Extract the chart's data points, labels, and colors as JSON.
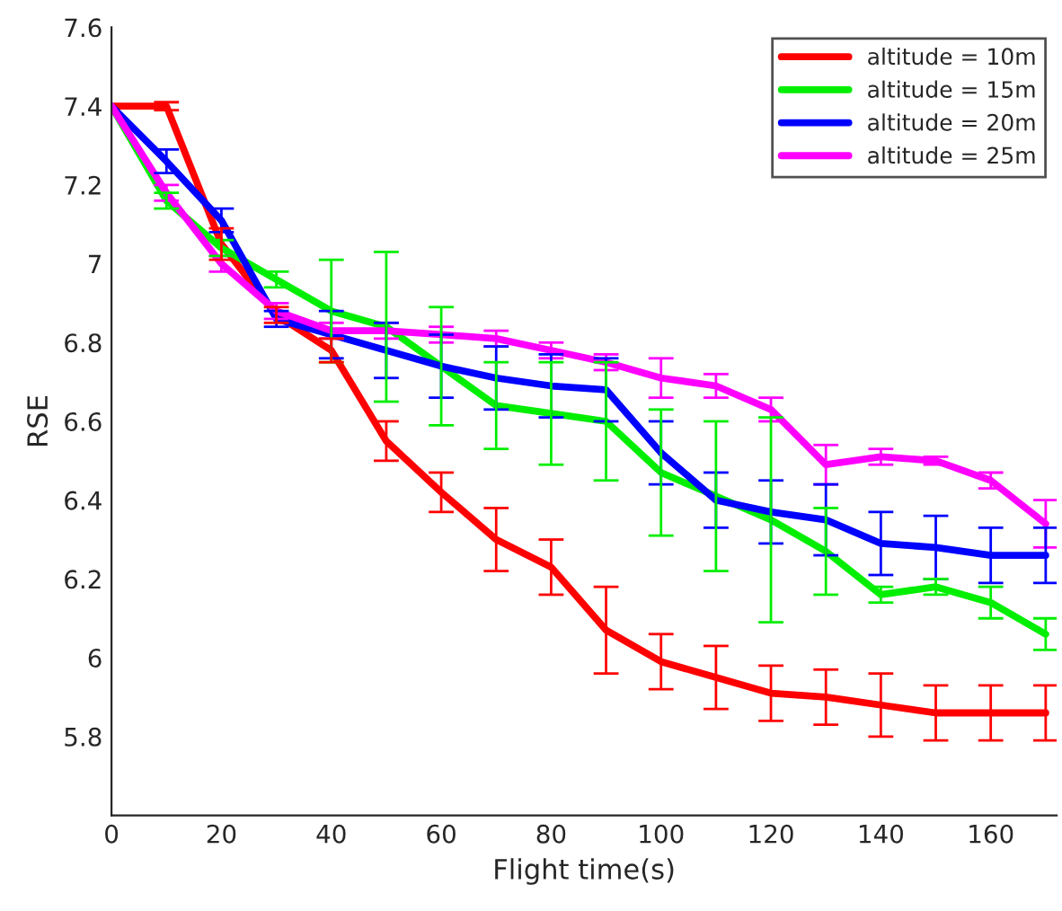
{
  "chart_data": {
    "type": "line",
    "xlabel": "Flight time(s)",
    "ylabel": "RSE",
    "x": [
      0,
      10,
      20,
      30,
      40,
      50,
      60,
      70,
      80,
      90,
      100,
      110,
      120,
      130,
      140,
      150,
      160,
      170
    ],
    "xlim": [
      0,
      172
    ],
    "xticks": [
      0,
      20,
      40,
      60,
      80,
      100,
      120,
      140,
      160
    ],
    "ylim": [
      5.6,
      7.6
    ],
    "yticks": [
      5.8,
      6,
      6.2,
      6.4,
      6.6,
      6.8,
      7,
      7.2,
      7.4,
      7.6
    ],
    "grid": false,
    "legend": "top right",
    "marker": "none",
    "line_style": "solid",
    "series": [
      {
        "name": "altitude = 10m",
        "color": "#ff0000",
        "values": [
          7.4,
          7.4,
          7.05,
          6.87,
          6.78,
          6.55,
          6.42,
          6.3,
          6.23,
          6.07,
          5.99,
          5.95,
          5.91,
          5.9,
          5.88,
          5.86,
          5.86,
          5.86
        ],
        "errors": [
          null,
          0.01,
          0.04,
          0.02,
          0.03,
          0.05,
          0.05,
          0.08,
          0.07,
          0.11,
          0.07,
          0.08,
          0.07,
          0.07,
          0.08,
          0.07,
          0.07,
          0.07
        ]
      },
      {
        "name": "altitude = 15m",
        "color": "#00ee00",
        "values": [
          7.4,
          7.16,
          7.04,
          6.96,
          6.88,
          6.84,
          6.74,
          6.64,
          6.62,
          6.6,
          6.47,
          6.41,
          6.35,
          6.27,
          6.16,
          6.18,
          6.14,
          6.06
        ],
        "errors": [
          null,
          0.02,
          0.02,
          0.02,
          0.13,
          0.19,
          0.15,
          0.11,
          0.13,
          0.15,
          0.16,
          0.19,
          0.26,
          0.11,
          0.02,
          0.02,
          0.04,
          0.04
        ]
      },
      {
        "name": "altitude = 20m",
        "color": "#0000ff",
        "values": [
          7.4,
          7.26,
          7.11,
          6.86,
          6.82,
          6.78,
          6.74,
          6.71,
          6.69,
          6.68,
          6.52,
          6.4,
          6.37,
          6.35,
          6.29,
          6.28,
          6.26,
          6.26
        ],
        "errors": [
          null,
          0.03,
          0.03,
          0.02,
          0.06,
          0.07,
          0.08,
          0.08,
          0.08,
          0.08,
          0.08,
          0.07,
          0.08,
          0.09,
          0.08,
          0.08,
          0.07,
          0.07
        ]
      },
      {
        "name": "altitude = 25m",
        "color": "#ff00ff",
        "values": [
          7.4,
          7.18,
          7.0,
          6.88,
          6.83,
          6.83,
          6.82,
          6.81,
          6.78,
          6.75,
          6.71,
          6.69,
          6.63,
          6.49,
          6.51,
          6.5,
          6.45,
          6.34
        ],
        "errors": [
          null,
          0.02,
          0.02,
          0.02,
          0.02,
          0.02,
          0.02,
          0.02,
          0.02,
          0.02,
          0.05,
          0.03,
          0.03,
          0.05,
          0.02,
          0.01,
          0.02,
          0.06
        ]
      }
    ]
  }
}
